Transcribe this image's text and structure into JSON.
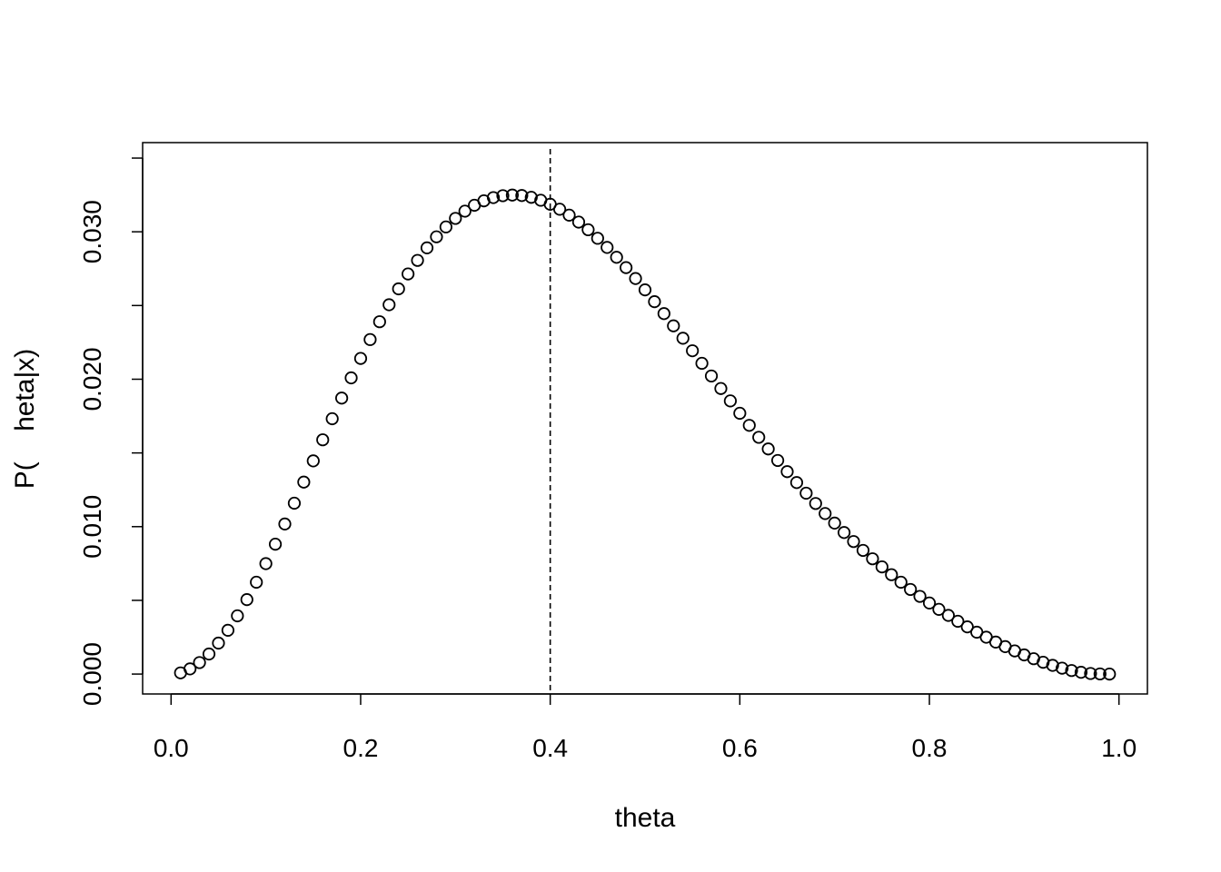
{
  "chart_data": {
    "type": "scatter",
    "xlabel": "theta",
    "ylabel": "P(    heta|x)",
    "xlim": [
      -0.03,
      1.03
    ],
    "ylim": [
      -0.00135,
      0.03605
    ],
    "x_ticks": [
      0.0,
      0.2,
      0.4,
      0.6,
      0.8,
      1.0
    ],
    "x_tick_labels": [
      "0.0",
      "0.2",
      "0.4",
      "0.6",
      "0.8",
      "1.0"
    ],
    "y_ticks": [
      0.0,
      0.005,
      0.01,
      0.015,
      0.02,
      0.025,
      0.03,
      0.035
    ],
    "y_tick_labels": [
      "0.000",
      "",
      "0.010",
      "",
      "0.020",
      "",
      "0.030",
      ""
    ],
    "vline": {
      "x": 0.4,
      "style": "dashed"
    },
    "marker": "open-circle",
    "grid": false,
    "series": [
      {
        "x": [
          0.01,
          0.02,
          0.03,
          0.04,
          0.05,
          0.06,
          0.07,
          0.08,
          0.09,
          0.1,
          0.11,
          0.12,
          0.13,
          0.14,
          0.15,
          0.16,
          0.17,
          0.18,
          0.19,
          0.2,
          0.21,
          0.22,
          0.23,
          0.24,
          0.25,
          0.26,
          0.27,
          0.28,
          0.29,
          0.3,
          0.31,
          0.32,
          0.33,
          0.34,
          0.35,
          0.36,
          0.37,
          0.38,
          0.39,
          0.4,
          0.41,
          0.42,
          0.43,
          0.44,
          0.45,
          0.46,
          0.47,
          0.48,
          0.49,
          0.5,
          0.51,
          0.52,
          0.53,
          0.54,
          0.55,
          0.56,
          0.57,
          0.58,
          0.59,
          0.6,
          0.61,
          0.62,
          0.63,
          0.64,
          0.65,
          0.66,
          0.67,
          0.68,
          0.69,
          0.7,
          0.71,
          0.72,
          0.73,
          0.74,
          0.75,
          0.76,
          0.77,
          0.78,
          0.79,
          0.8,
          0.81,
          0.82,
          0.83,
          0.84,
          0.85,
          0.86,
          0.87,
          0.88,
          0.89,
          0.9,
          0.91,
          0.92,
          0.93,
          0.94,
          0.95,
          0.96,
          0.97,
          0.98,
          0.99
        ],
        "y": [
          8e-05,
          0.00035,
          0.00078,
          0.00136,
          0.0021,
          0.00297,
          0.00395,
          0.00505,
          0.00623,
          0.00749,
          0.00881,
          0.01018,
          0.01159,
          0.01302,
          0.01446,
          0.01589,
          0.01732,
          0.01872,
          0.02009,
          0.02141,
          0.02269,
          0.0239,
          0.02505,
          0.02613,
          0.02714,
          0.02806,
          0.02891,
          0.02966,
          0.03033,
          0.03091,
          0.0314,
          0.0318,
          0.0321,
          0.03232,
          0.03245,
          0.03249,
          0.03246,
          0.03234,
          0.03214,
          0.03187,
          0.03153,
          0.03113,
          0.03066,
          0.03014,
          0.02956,
          0.02894,
          0.02827,
          0.02757,
          0.02683,
          0.02606,
          0.02526,
          0.02445,
          0.02362,
          0.02278,
          0.02193,
          0.02108,
          0.02022,
          0.01937,
          0.01853,
          0.01769,
          0.01687,
          0.01606,
          0.01527,
          0.01449,
          0.01373,
          0.01299,
          0.01227,
          0.01157,
          0.01089,
          0.01024,
          0.0096,
          0.00899,
          0.00839,
          0.00782,
          0.00727,
          0.00674,
          0.00623,
          0.00574,
          0.00527,
          0.00482,
          0.00439,
          0.00398,
          0.00358,
          0.0032,
          0.00284,
          0.0025,
          0.00217,
          0.00186,
          0.00157,
          0.0013,
          0.00104,
          0.0008,
          0.00059,
          0.0004,
          0.00024,
          0.00012,
          4e-05,
          1e-05,
          0.0
        ]
      }
    ]
  }
}
